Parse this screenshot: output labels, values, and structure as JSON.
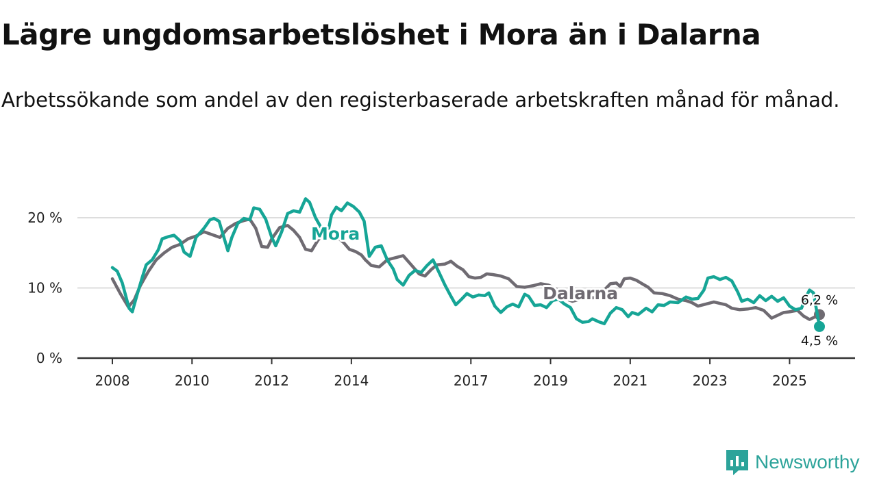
{
  "title": "Lägre ungdomsarbetslöshet i Mora än i Dalarna",
  "subtitle": "Arbetssökande som andel av den registerbaserade arbetskraften månad för månad.",
  "brand": {
    "name": "Newsworthy",
    "color": "#2ca39a"
  },
  "chart_data": {
    "type": "line",
    "title": "Lägre ungdomsarbetslöshet i Mora än i Dalarna",
    "xlabel": "",
    "ylabel": "",
    "x_range": [
      2008.0,
      2025.75
    ],
    "ylim": [
      0,
      22
    ],
    "y_ticks": [
      {
        "value": 0,
        "label": "0 %"
      },
      {
        "value": 10,
        "label": "10 %"
      },
      {
        "value": 20,
        "label": "20 %"
      }
    ],
    "x_ticks": [
      {
        "value": 2008,
        "label": "2008"
      },
      {
        "value": 2010,
        "label": "2010"
      },
      {
        "value": 2012,
        "label": "2012"
      },
      {
        "value": 2014,
        "label": "2014"
      },
      {
        "value": 2017,
        "label": "2017"
      },
      {
        "value": 2019,
        "label": "2019"
      },
      {
        "value": 2021,
        "label": "2021"
      },
      {
        "value": 2023,
        "label": "2023"
      },
      {
        "value": 2025,
        "label": "2025"
      }
    ],
    "grid": "horizontal",
    "series": [
      {
        "name": "Dalarna",
        "color": "#6f6b72",
        "label_at": {
          "x": 2019.75,
          "y": 8.4
        },
        "end_label": "6,2 %",
        "end_value": 6.2,
        "points": [
          [
            2008.0,
            11.3
          ],
          [
            2008.2,
            9.2
          ],
          [
            2008.4,
            7.3
          ],
          [
            2008.55,
            8.3
          ],
          [
            2008.7,
            10.3
          ],
          [
            2008.9,
            12.3
          ],
          [
            2009.1,
            14.0
          ],
          [
            2009.3,
            15.0
          ],
          [
            2009.5,
            15.8
          ],
          [
            2009.7,
            16.2
          ],
          [
            2009.9,
            17.0
          ],
          [
            2010.1,
            17.4
          ],
          [
            2010.3,
            18.0
          ],
          [
            2010.5,
            17.6
          ],
          [
            2010.7,
            17.2
          ],
          [
            2010.9,
            18.5
          ],
          [
            2011.1,
            19.2
          ],
          [
            2011.3,
            19.6
          ],
          [
            2011.45,
            19.8
          ],
          [
            2011.6,
            18.5
          ],
          [
            2011.75,
            15.9
          ],
          [
            2011.9,
            15.8
          ],
          [
            2012.0,
            17.0
          ],
          [
            2012.2,
            18.6
          ],
          [
            2012.4,
            18.9
          ],
          [
            2012.55,
            18.2
          ],
          [
            2012.7,
            17.2
          ],
          [
            2012.85,
            15.5
          ],
          [
            2013.0,
            15.3
          ],
          [
            2013.15,
            16.7
          ],
          [
            2013.3,
            17.8
          ],
          [
            2013.5,
            17.6
          ],
          [
            2013.65,
            17.2
          ],
          [
            2013.8,
            16.5
          ],
          [
            2013.95,
            15.5
          ],
          [
            2014.1,
            15.2
          ],
          [
            2014.25,
            14.7
          ],
          [
            2014.35,
            14.0
          ],
          [
            2014.5,
            13.2
          ],
          [
            2014.7,
            13.0
          ],
          [
            2014.9,
            14.0
          ],
          [
            2015.1,
            14.3
          ],
          [
            2015.3,
            14.6
          ],
          [
            2015.5,
            13.3
          ],
          [
            2015.7,
            12.0
          ],
          [
            2015.85,
            11.7
          ],
          [
            2016.0,
            12.6
          ],
          [
            2016.15,
            13.3
          ],
          [
            2016.35,
            13.4
          ],
          [
            2016.5,
            13.8
          ],
          [
            2016.65,
            13.1
          ],
          [
            2016.8,
            12.6
          ],
          [
            2016.95,
            11.6
          ],
          [
            2017.1,
            11.4
          ],
          [
            2017.25,
            11.5
          ],
          [
            2017.4,
            12.0
          ],
          [
            2017.55,
            11.9
          ],
          [
            2017.75,
            11.7
          ],
          [
            2017.95,
            11.3
          ],
          [
            2018.15,
            10.2
          ],
          [
            2018.35,
            10.1
          ],
          [
            2018.55,
            10.3
          ],
          [
            2018.75,
            10.6
          ],
          [
            2018.95,
            10.4
          ],
          [
            2019.15,
            9.8
          ],
          [
            2019.35,
            8.5
          ],
          [
            2019.55,
            8.1
          ],
          [
            2019.75,
            8.4
          ],
          [
            2019.95,
            8.6
          ],
          [
            2020.15,
            8.6
          ],
          [
            2020.35,
            9.7
          ],
          [
            2020.5,
            10.6
          ],
          [
            2020.65,
            10.7
          ],
          [
            2020.75,
            10.2
          ],
          [
            2020.85,
            11.3
          ],
          [
            2021.0,
            11.4
          ],
          [
            2021.15,
            11.1
          ],
          [
            2021.3,
            10.6
          ],
          [
            2021.45,
            10.1
          ],
          [
            2021.6,
            9.3
          ],
          [
            2021.8,
            9.2
          ],
          [
            2022.0,
            8.9
          ],
          [
            2022.2,
            8.4
          ],
          [
            2022.4,
            8.2
          ],
          [
            2022.55,
            7.9
          ],
          [
            2022.7,
            7.4
          ],
          [
            2022.9,
            7.7
          ],
          [
            2023.1,
            8.0
          ],
          [
            2023.25,
            7.8
          ],
          [
            2023.4,
            7.6
          ],
          [
            2023.55,
            7.1
          ],
          [
            2023.75,
            6.9
          ],
          [
            2023.95,
            7.0
          ],
          [
            2024.15,
            7.2
          ],
          [
            2024.35,
            6.8
          ],
          [
            2024.55,
            5.7
          ],
          [
            2024.7,
            6.1
          ],
          [
            2024.85,
            6.5
          ],
          [
            2025.0,
            6.6
          ],
          [
            2025.2,
            6.8
          ],
          [
            2025.35,
            6.0
          ],
          [
            2025.5,
            5.5
          ],
          [
            2025.65,
            5.9
          ],
          [
            2025.75,
            6.2
          ]
        ]
      },
      {
        "name": "Mora",
        "color": "#16a596",
        "label_at": {
          "x": 2013.6,
          "y": 16.9
        },
        "end_label": "4,5 %",
        "end_value": 4.5,
        "points": [
          [
            2008.0,
            12.9
          ],
          [
            2008.12,
            12.4
          ],
          [
            2008.25,
            10.7
          ],
          [
            2008.35,
            8.6
          ],
          [
            2008.42,
            7.1
          ],
          [
            2008.5,
            6.6
          ],
          [
            2008.62,
            9.0
          ],
          [
            2008.75,
            11.5
          ],
          [
            2008.85,
            13.3
          ],
          [
            2009.0,
            14.0
          ],
          [
            2009.15,
            15.4
          ],
          [
            2009.25,
            17.0
          ],
          [
            2009.4,
            17.3
          ],
          [
            2009.55,
            17.5
          ],
          [
            2009.7,
            16.7
          ],
          [
            2009.8,
            15.1
          ],
          [
            2009.95,
            14.5
          ],
          [
            2010.1,
            17.2
          ],
          [
            2010.3,
            18.5
          ],
          [
            2010.45,
            19.7
          ],
          [
            2010.55,
            19.9
          ],
          [
            2010.68,
            19.5
          ],
          [
            2010.78,
            17.6
          ],
          [
            2010.9,
            15.3
          ],
          [
            2011.0,
            17.2
          ],
          [
            2011.15,
            19.2
          ],
          [
            2011.3,
            19.9
          ],
          [
            2011.45,
            19.7
          ],
          [
            2011.55,
            21.4
          ],
          [
            2011.7,
            21.2
          ],
          [
            2011.85,
            19.8
          ],
          [
            2012.0,
            17.2
          ],
          [
            2012.1,
            16.0
          ],
          [
            2012.25,
            18.0
          ],
          [
            2012.4,
            20.6
          ],
          [
            2012.55,
            21.0
          ],
          [
            2012.7,
            20.8
          ],
          [
            2012.85,
            22.7
          ],
          [
            2012.95,
            22.2
          ],
          [
            2013.1,
            20.0
          ],
          [
            2013.25,
            18.5
          ],
          [
            2013.4,
            17.6
          ],
          [
            2013.5,
            20.4
          ],
          [
            2013.62,
            21.5
          ],
          [
            2013.75,
            21.0
          ],
          [
            2013.9,
            22.1
          ],
          [
            2014.05,
            21.6
          ],
          [
            2014.2,
            20.8
          ],
          [
            2014.32,
            19.5
          ],
          [
            2014.45,
            14.5
          ],
          [
            2014.6,
            15.8
          ],
          [
            2014.75,
            16.0
          ],
          [
            2014.9,
            14.0
          ],
          [
            2015.05,
            12.7
          ],
          [
            2015.15,
            11.2
          ],
          [
            2015.3,
            10.4
          ],
          [
            2015.45,
            11.8
          ],
          [
            2015.6,
            12.5
          ],
          [
            2015.75,
            12.2
          ],
          [
            2015.9,
            13.2
          ],
          [
            2016.05,
            14.0
          ],
          [
            2016.2,
            12.2
          ],
          [
            2016.35,
            10.4
          ],
          [
            2016.5,
            8.8
          ],
          [
            2016.62,
            7.6
          ],
          [
            2016.75,
            8.3
          ],
          [
            2016.9,
            9.2
          ],
          [
            2017.05,
            8.7
          ],
          [
            2017.2,
            9.0
          ],
          [
            2017.35,
            8.9
          ],
          [
            2017.45,
            9.3
          ],
          [
            2017.6,
            7.4
          ],
          [
            2017.75,
            6.5
          ],
          [
            2017.9,
            7.3
          ],
          [
            2018.05,
            7.7
          ],
          [
            2018.2,
            7.3
          ],
          [
            2018.35,
            9.1
          ],
          [
            2018.45,
            8.8
          ],
          [
            2018.6,
            7.5
          ],
          [
            2018.75,
            7.6
          ],
          [
            2018.9,
            7.2
          ],
          [
            2019.05,
            8.2
          ],
          [
            2019.2,
            8.4
          ],
          [
            2019.35,
            7.7
          ],
          [
            2019.5,
            7.2
          ],
          [
            2019.65,
            5.6
          ],
          [
            2019.8,
            5.1
          ],
          [
            2019.95,
            5.2
          ],
          [
            2020.05,
            5.6
          ],
          [
            2020.2,
            5.2
          ],
          [
            2020.35,
            4.9
          ],
          [
            2020.5,
            6.4
          ],
          [
            2020.65,
            7.2
          ],
          [
            2020.8,
            6.9
          ],
          [
            2020.95,
            5.9
          ],
          [
            2021.05,
            6.5
          ],
          [
            2021.2,
            6.2
          ],
          [
            2021.4,
            7.1
          ],
          [
            2021.55,
            6.6
          ],
          [
            2021.7,
            7.6
          ],
          [
            2021.85,
            7.5
          ],
          [
            2022.0,
            8.0
          ],
          [
            2022.2,
            7.9
          ],
          [
            2022.4,
            8.7
          ],
          [
            2022.55,
            8.4
          ],
          [
            2022.7,
            8.5
          ],
          [
            2022.85,
            9.7
          ],
          [
            2022.95,
            11.4
          ],
          [
            2023.1,
            11.6
          ],
          [
            2023.25,
            11.2
          ],
          [
            2023.4,
            11.5
          ],
          [
            2023.55,
            11.0
          ],
          [
            2023.7,
            9.4
          ],
          [
            2023.8,
            8.1
          ],
          [
            2023.95,
            8.4
          ],
          [
            2024.1,
            7.9
          ],
          [
            2024.25,
            8.9
          ],
          [
            2024.4,
            8.2
          ],
          [
            2024.55,
            8.8
          ],
          [
            2024.7,
            8.1
          ],
          [
            2024.85,
            8.6
          ],
          [
            2025.0,
            7.4
          ],
          [
            2025.15,
            6.9
          ],
          [
            2025.3,
            7.1
          ],
          [
            2025.4,
            8.6
          ],
          [
            2025.5,
            9.7
          ],
          [
            2025.6,
            9.3
          ],
          [
            2025.75,
            4.5
          ]
        ]
      }
    ]
  }
}
